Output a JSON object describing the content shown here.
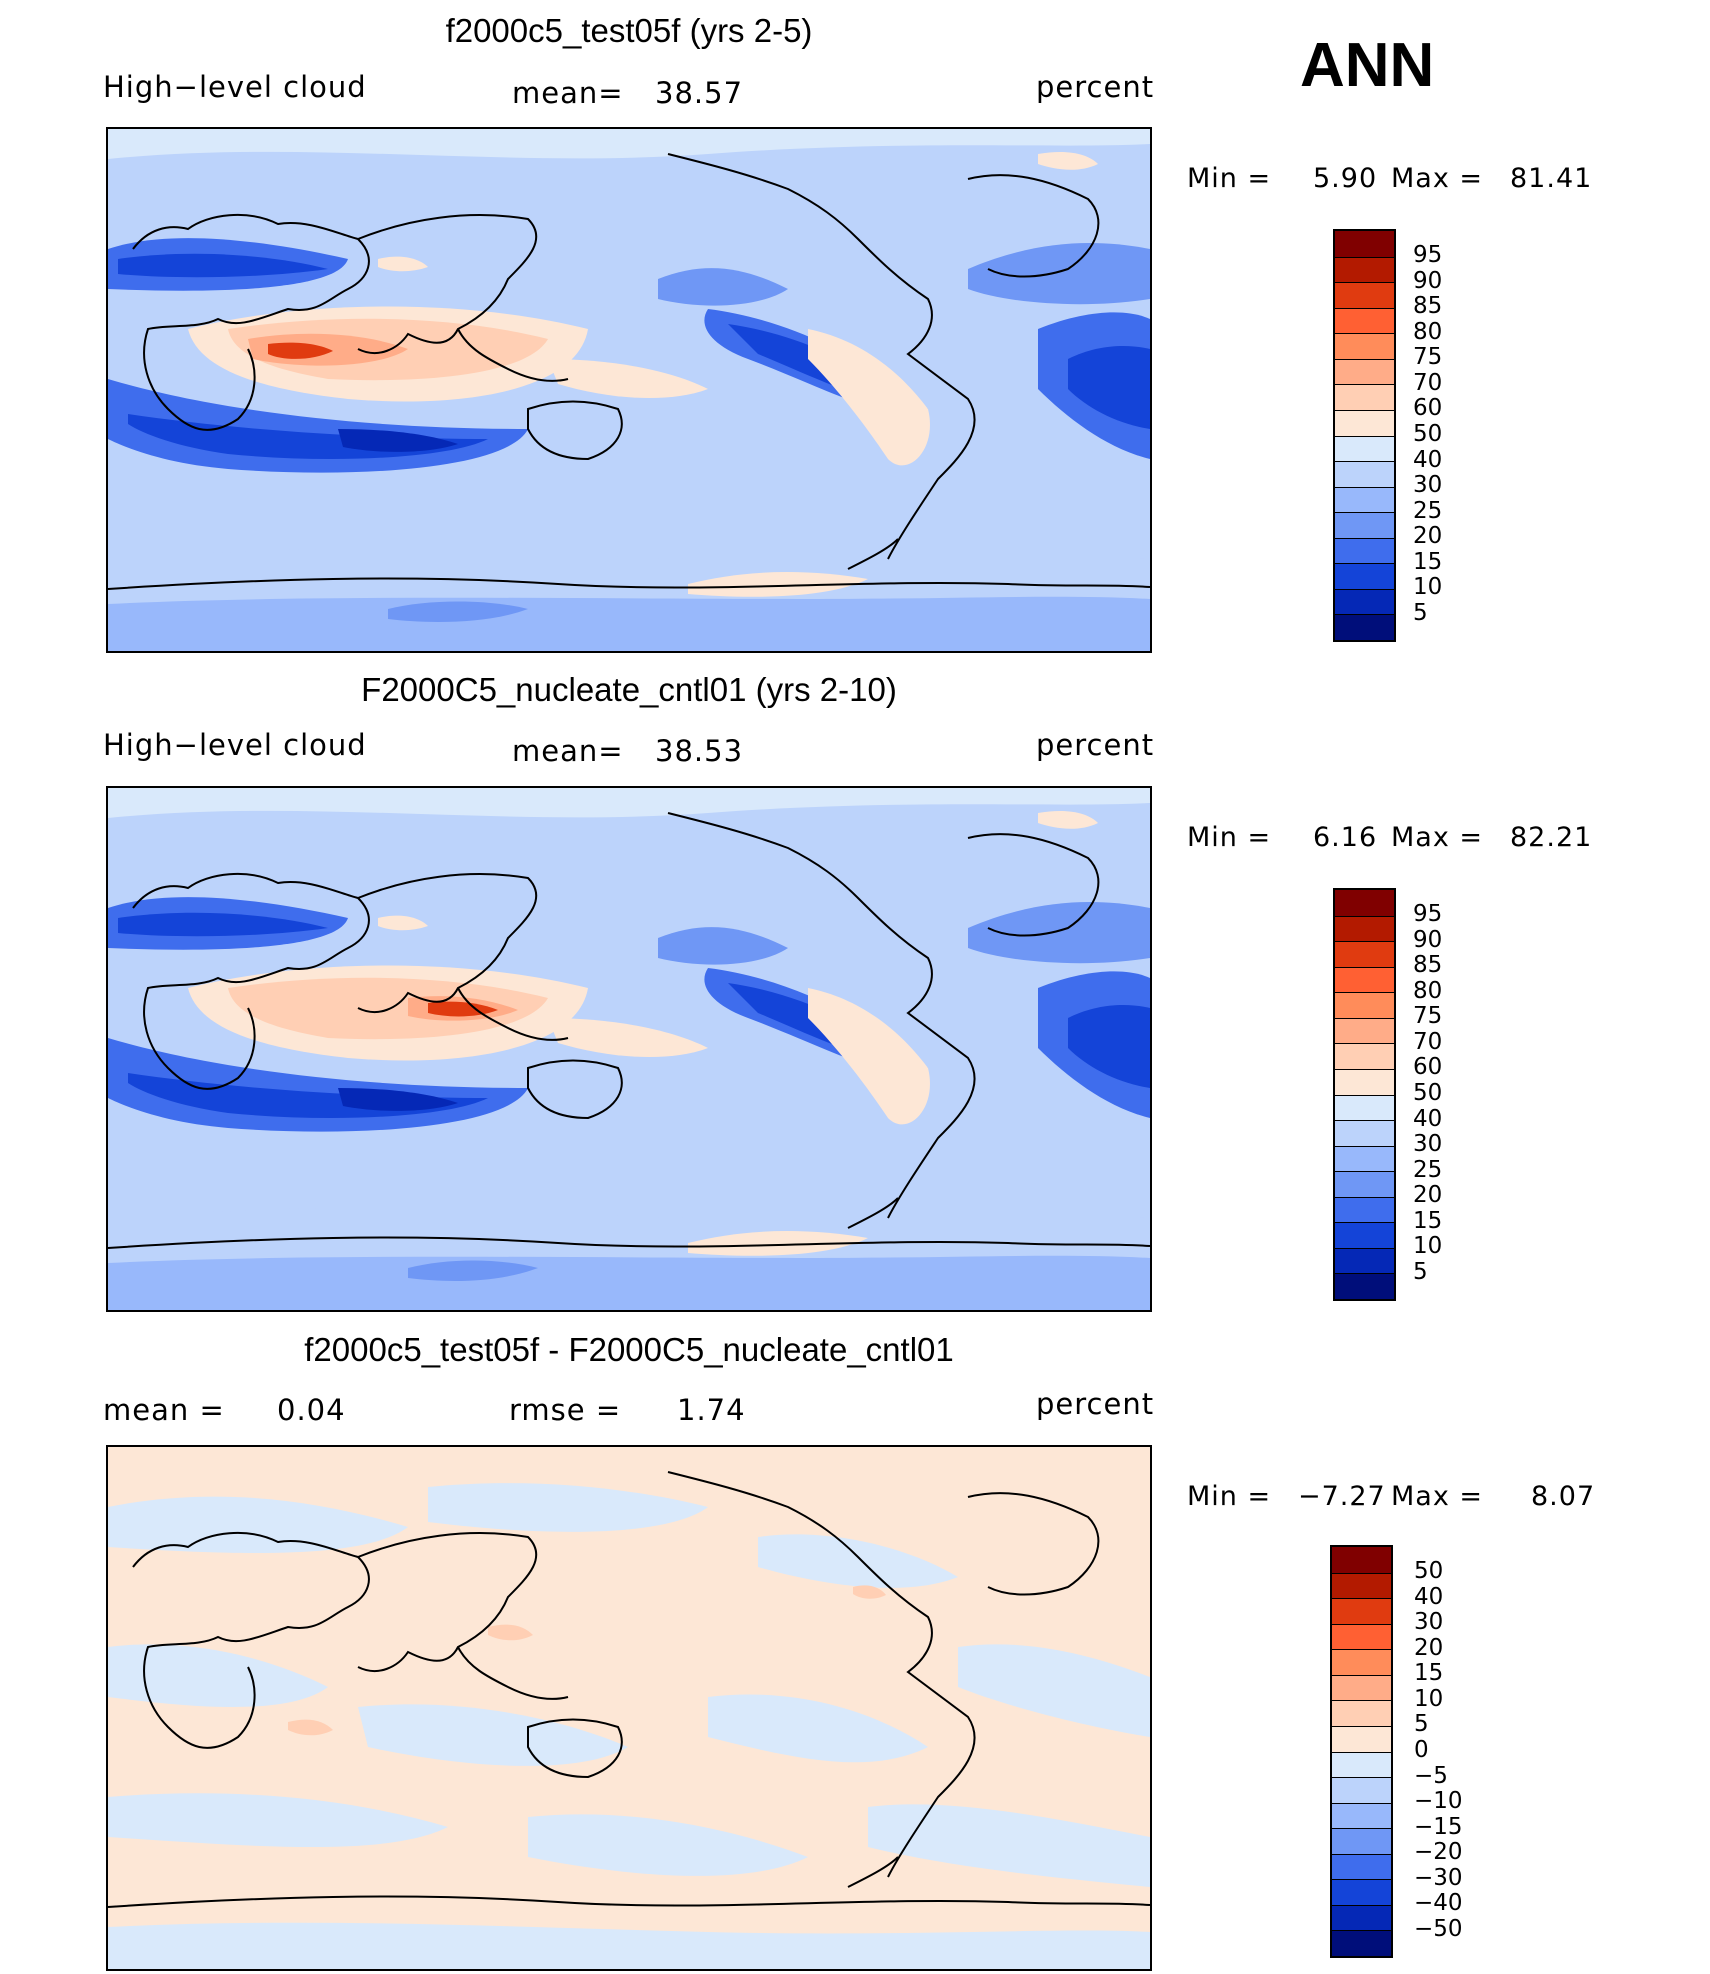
{
  "season": "ANN",
  "panels": [
    {
      "title": "f2000c5_test05f (yrs 2-5)",
      "left_label": "High−level cloud",
      "stat_label": "mean=",
      "stat_value": "38.57",
      "units": "percent",
      "min_label": "Min  =",
      "min_value": "5.90",
      "max_label": "Max  =",
      "max_value": "81.41",
      "colorbar_labels": [
        "95",
        "90",
        "85",
        "80",
        "75",
        "70",
        "60",
        "50",
        "40",
        "30",
        "25",
        "20",
        "15",
        "10",
        "5"
      ]
    },
    {
      "title": "F2000C5_nucleate_cntl01 (yrs 2-10)",
      "left_label": "High−level cloud",
      "stat_label": "mean=",
      "stat_value": "38.53",
      "units": "percent",
      "min_label": "Min  =",
      "min_value": "6.16",
      "max_label": "Max  =",
      "max_value": "82.21",
      "colorbar_labels": [
        "95",
        "90",
        "85",
        "80",
        "75",
        "70",
        "60",
        "50",
        "40",
        "30",
        "25",
        "20",
        "15",
        "10",
        "5"
      ]
    },
    {
      "title": "f2000c5_test05f - F2000C5_nucleate_cntl01",
      "left_label": "mean  =",
      "left_value": "0.04",
      "stat_label": "rmse  =",
      "stat_value": "1.74",
      "units": "percent",
      "min_label": "Min  =",
      "min_value": "−7.27",
      "max_label": "Max  =",
      "max_value": "8.07",
      "colorbar_labels": [
        "50",
        "40",
        "30",
        "20",
        "15",
        "10",
        "5",
        "0",
        "−5",
        "−10",
        "−15",
        "−20",
        "−30",
        "−40",
        "−50"
      ]
    }
  ],
  "colors": {
    "scale": [
      "#800000",
      "#b31a00",
      "#e03b10",
      "#ff6033",
      "#ff8c5a",
      "#ffac88",
      "#ffcfb4",
      "#fde7d6",
      "#d9e9fb",
      "#bcd3fb",
      "#98b8fb",
      "#6f97f5",
      "#3f6ded",
      "#1444d8",
      "#0528b6",
      "#000e7a"
    ]
  }
}
